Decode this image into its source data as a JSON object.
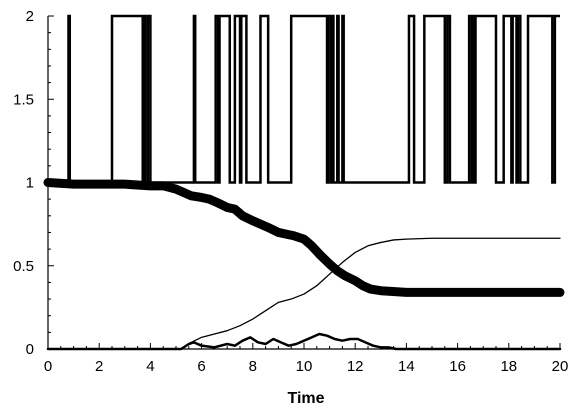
{
  "chart_data": {
    "type": "line",
    "title": "",
    "xlabel": "Time",
    "ylabel": "",
    "xlim": [
      0,
      20
    ],
    "ylim": [
      0,
      2
    ],
    "xticks": [
      0,
      2,
      4,
      6,
      8,
      10,
      12,
      14,
      16,
      18,
      20
    ],
    "yticks": [
      0,
      0.5,
      1,
      1.5,
      2
    ],
    "ytick_labels": [
      "0",
      "0.5",
      "1",
      "1.5",
      "2"
    ],
    "grid": false,
    "legend": "none",
    "series": [
      {
        "style": "step",
        "color": "#000000",
        "x": [
          0,
          0.8,
          0.85,
          2.5,
          3.7,
          3.75,
          3.8,
          3.9,
          4.0,
          5.7,
          5.75,
          6.55,
          6.65,
          6.7,
          7.1,
          7.3,
          7.5,
          7.55,
          7.75,
          8.3,
          8.6,
          9.5,
          10.9,
          10.95,
          11.05,
          11.1,
          11.15,
          11.3,
          11.35,
          11.5,
          11.55,
          14.1,
          14.3,
          14.7,
          15.5,
          15.6,
          15.7,
          16.45,
          16.55,
          16.6,
          16.65,
          16.7,
          17.5,
          17.8,
          18.1,
          18.15,
          18.3,
          18.35,
          18.45,
          18.75,
          19.7,
          19.8,
          20
        ],
        "y": [
          1,
          2,
          1,
          2,
          1,
          2,
          1,
          2,
          1,
          2,
          1,
          2,
          1,
          2,
          1,
          2,
          1,
          2,
          1,
          2,
          1,
          2,
          1,
          2,
          1,
          2,
          1,
          2,
          1,
          2,
          1,
          2,
          1,
          2,
          1,
          2,
          1,
          2,
          1,
          2,
          1,
          2,
          1,
          2,
          1,
          2,
          1,
          2,
          1,
          2,
          1,
          2,
          2
        ]
      },
      {
        "style": "line",
        "color": "#000000",
        "width": 9,
        "x": [
          0,
          1,
          2,
          3,
          4,
          4.5,
          5,
          5.3,
          5.6,
          6,
          6.3,
          6.6,
          7,
          7.3,
          7.6,
          8,
          8.3,
          8.6,
          9,
          9.3,
          9.6,
          10,
          10.3,
          10.6,
          11,
          11.3,
          11.6,
          12,
          12.3,
          12.6,
          13,
          14,
          15,
          16,
          17,
          18,
          19,
          20
        ],
        "y": [
          1,
          0.99,
          0.99,
          0.99,
          0.98,
          0.98,
          0.96,
          0.94,
          0.92,
          0.91,
          0.9,
          0.88,
          0.85,
          0.84,
          0.8,
          0.77,
          0.75,
          0.73,
          0.7,
          0.69,
          0.68,
          0.66,
          0.62,
          0.57,
          0.51,
          0.47,
          0.44,
          0.41,
          0.38,
          0.36,
          0.35,
          0.34,
          0.34,
          0.34,
          0.34,
          0.34,
          0.34,
          0.34
        ]
      },
      {
        "style": "line",
        "color": "#000000",
        "width": 1.3,
        "x": [
          0,
          5.2,
          5.6,
          6,
          6.5,
          7,
          7.5,
          8,
          8.5,
          9,
          9.5,
          10,
          10.5,
          11,
          11.5,
          12,
          12.5,
          13,
          13.5,
          14,
          15,
          16,
          17,
          18,
          19,
          20
        ],
        "y": [
          0,
          0,
          0.04,
          0.07,
          0.09,
          0.11,
          0.14,
          0.18,
          0.23,
          0.28,
          0.3,
          0.33,
          0.38,
          0.45,
          0.52,
          0.58,
          0.62,
          0.64,
          0.655,
          0.66,
          0.665,
          0.665,
          0.665,
          0.665,
          0.665,
          0.665
        ]
      },
      {
        "style": "line",
        "color": "#000000",
        "width": 2.5,
        "x": [
          0,
          5.2,
          5.5,
          5.7,
          6,
          6.5,
          7,
          7.3,
          7.6,
          7.9,
          8.2,
          8.5,
          8.8,
          9.1,
          9.4,
          9.7,
          10,
          10.3,
          10.6,
          10.9,
          11.2,
          11.5,
          11.8,
          12.1,
          12.4,
          12.7,
          13,
          13.3,
          13.6,
          14,
          20
        ],
        "y": [
          0,
          0,
          0.03,
          0.04,
          0.02,
          0.01,
          0.03,
          0.02,
          0.05,
          0.07,
          0.04,
          0.03,
          0.06,
          0.04,
          0.02,
          0.03,
          0.05,
          0.07,
          0.09,
          0.08,
          0.06,
          0.05,
          0.06,
          0.06,
          0.04,
          0.02,
          0.01,
          0.01,
          0.0,
          0.0,
          0.0
        ]
      }
    ]
  }
}
